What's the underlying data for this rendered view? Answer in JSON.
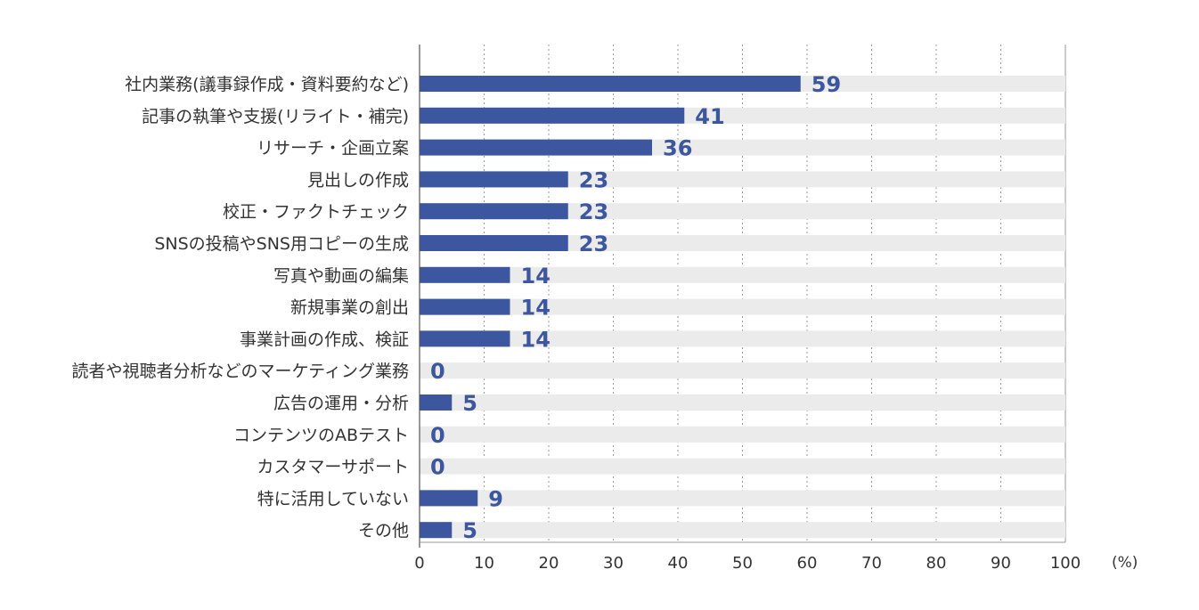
{
  "chart_data": {
    "type": "bar",
    "orientation": "horizontal",
    "categories": [
      "社内業務(議事録作成・資料要約など)",
      "記事の執筆や支援(リライト・補完)",
      "リサーチ・企画立案",
      "見出しの作成",
      "校正・ファクトチェック",
      "SNSの投稿やSNS用コピーの生成",
      "写真や動画の編集",
      "新規事業の創出",
      "事業計画の作成、検証",
      "読者や視聴者分析などのマーケティング業務",
      "広告の運用・分析",
      "コンテンツのABテスト",
      "カスタマーサポート",
      "特に活用していない",
      "その他"
    ],
    "values": [
      59,
      41,
      36,
      23,
      23,
      23,
      14,
      14,
      14,
      0,
      5,
      0,
      0,
      9,
      5
    ],
    "xlim": [
      0,
      100
    ],
    "xticks": [
      0,
      10,
      20,
      30,
      40,
      50,
      60,
      70,
      80,
      90,
      100
    ],
    "unit": "(%)",
    "grid": "vertical-dotted",
    "colors": {
      "bar": "#3c56a0",
      "track": "#ebebeb",
      "value_text": "#3c56a0",
      "grid": "#999999"
    }
  }
}
